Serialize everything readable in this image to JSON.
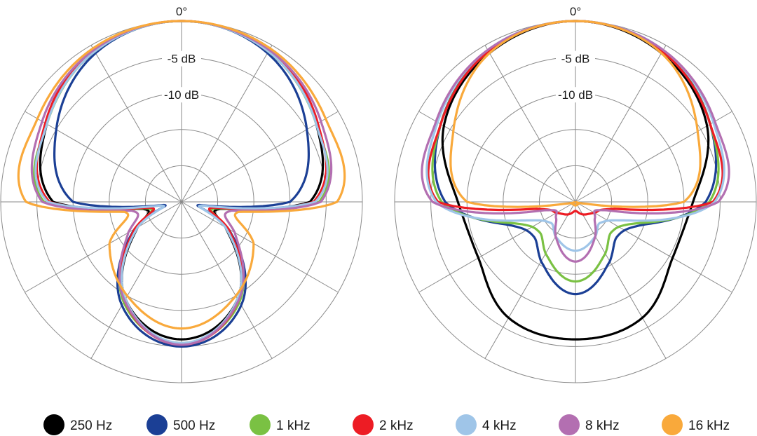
{
  "chart_data": [
    {
      "type": "polar",
      "angle_label": "0°",
      "ring_labels": [
        "-5 dB",
        "-10 dB"
      ],
      "series": [
        {
          "name": "250 Hz",
          "color": "#000000",
          "angles": [
            0,
            30,
            60,
            90,
            100,
            120,
            150,
            180
          ],
          "values": [
            1.0,
            0.96,
            0.86,
            0.71,
            0.22,
            0.28,
            0.62,
            0.76
          ]
        },
        {
          "name": "500 Hz",
          "color": "#1b3f95",
          "angles": [
            0,
            30,
            60,
            90,
            100,
            120,
            150,
            180
          ],
          "values": [
            1.0,
            0.95,
            0.8,
            0.6,
            0.1,
            0.3,
            0.66,
            0.8
          ]
        },
        {
          "name": "1 kHz",
          "color": "#7ac143",
          "angles": [
            0,
            30,
            60,
            90,
            100,
            120,
            150,
            180
          ],
          "values": [
            1.0,
            0.96,
            0.86,
            0.76,
            0.2,
            0.29,
            0.64,
            0.78
          ]
        },
        {
          "name": "2 kHz",
          "color": "#ed1c24",
          "angles": [
            0,
            30,
            60,
            90,
            100,
            120,
            150,
            180
          ],
          "values": [
            1.0,
            0.97,
            0.87,
            0.73,
            0.18,
            0.3,
            0.63,
            0.79
          ]
        },
        {
          "name": "4 kHz",
          "color": "#9fc5e8",
          "angles": [
            0,
            30,
            60,
            90,
            100,
            120,
            150,
            180
          ],
          "values": [
            1.0,
            0.96,
            0.86,
            0.74,
            0.12,
            0.28,
            0.62,
            0.78
          ]
        },
        {
          "name": "8 kHz",
          "color": "#b36fb1",
          "angles": [
            0,
            30,
            60,
            90,
            100,
            120,
            150,
            180
          ],
          "values": [
            1.0,
            0.97,
            0.89,
            0.77,
            0.28,
            0.34,
            0.63,
            0.79
          ]
        },
        {
          "name": "16 kHz",
          "color": "#f9a93b",
          "angles": [
            0,
            30,
            60,
            90,
            100,
            120,
            150,
            180
          ],
          "values": [
            1.0,
            0.98,
            0.92,
            0.86,
            0.32,
            0.46,
            0.6,
            0.7
          ]
        }
      ]
    },
    {
      "type": "polar",
      "angle_label": "0°",
      "ring_labels": [
        "-5 dB",
        "-10 dB"
      ],
      "series": [
        {
          "name": "250 Hz",
          "color": "#000000",
          "angles": [
            0,
            30,
            60,
            90,
            120,
            150,
            180
          ],
          "values": [
            1.0,
            0.95,
            0.84,
            0.65,
            0.62,
            0.74,
            0.76
          ]
        },
        {
          "name": "500 Hz",
          "color": "#1b3f95",
          "angles": [
            0,
            30,
            60,
            90,
            110,
            130,
            150,
            180
          ],
          "values": [
            1.0,
            0.96,
            0.86,
            0.72,
            0.38,
            0.3,
            0.38,
            0.51
          ]
        },
        {
          "name": "1 kHz",
          "color": "#7ac143",
          "angles": [
            0,
            30,
            60,
            90,
            110,
            130,
            150,
            180
          ],
          "values": [
            1.0,
            0.96,
            0.86,
            0.74,
            0.35,
            0.26,
            0.33,
            0.44
          ]
        },
        {
          "name": "2 kHz",
          "color": "#ed1c24",
          "angles": [
            0,
            30,
            60,
            90,
            100,
            120,
            150,
            180
          ],
          "values": [
            1.0,
            0.96,
            0.86,
            0.76,
            0.22,
            0.12,
            0.08,
            0.05
          ]
        },
        {
          "name": "4 kHz",
          "color": "#9fc5e8",
          "angles": [
            0,
            30,
            60,
            90,
            110,
            130,
            150,
            180
          ],
          "values": [
            1.0,
            0.97,
            0.88,
            0.77,
            0.3,
            0.18,
            0.22,
            0.27
          ]
        },
        {
          "name": "8 kHz",
          "color": "#b36fb1",
          "angles": [
            0,
            30,
            60,
            90,
            105,
            130,
            150,
            180
          ],
          "values": [
            1.0,
            0.97,
            0.89,
            0.79,
            0.18,
            0.14,
            0.22,
            0.33
          ]
        },
        {
          "name": "16 kHz",
          "color": "#f9a93b",
          "angles": [
            0,
            30,
            60,
            90,
            100,
            130,
            180
          ],
          "values": [
            1.0,
            0.95,
            0.78,
            0.6,
            0.06,
            0.02,
            0.02
          ]
        }
      ]
    }
  ],
  "legend": [
    {
      "label": "250 Hz",
      "color": "#000000"
    },
    {
      "label": "500 Hz",
      "color": "#1b3f95"
    },
    {
      "label": "1 kHz",
      "color": "#7ac143"
    },
    {
      "label": "2 kHz",
      "color": "#ed1c24"
    },
    {
      "label": "4 kHz",
      "color": "#9fc5e8"
    },
    {
      "label": "8 kHz",
      "color": "#b36fb1"
    },
    {
      "label": "16 kHz",
      "color": "#f9a93b"
    }
  ]
}
